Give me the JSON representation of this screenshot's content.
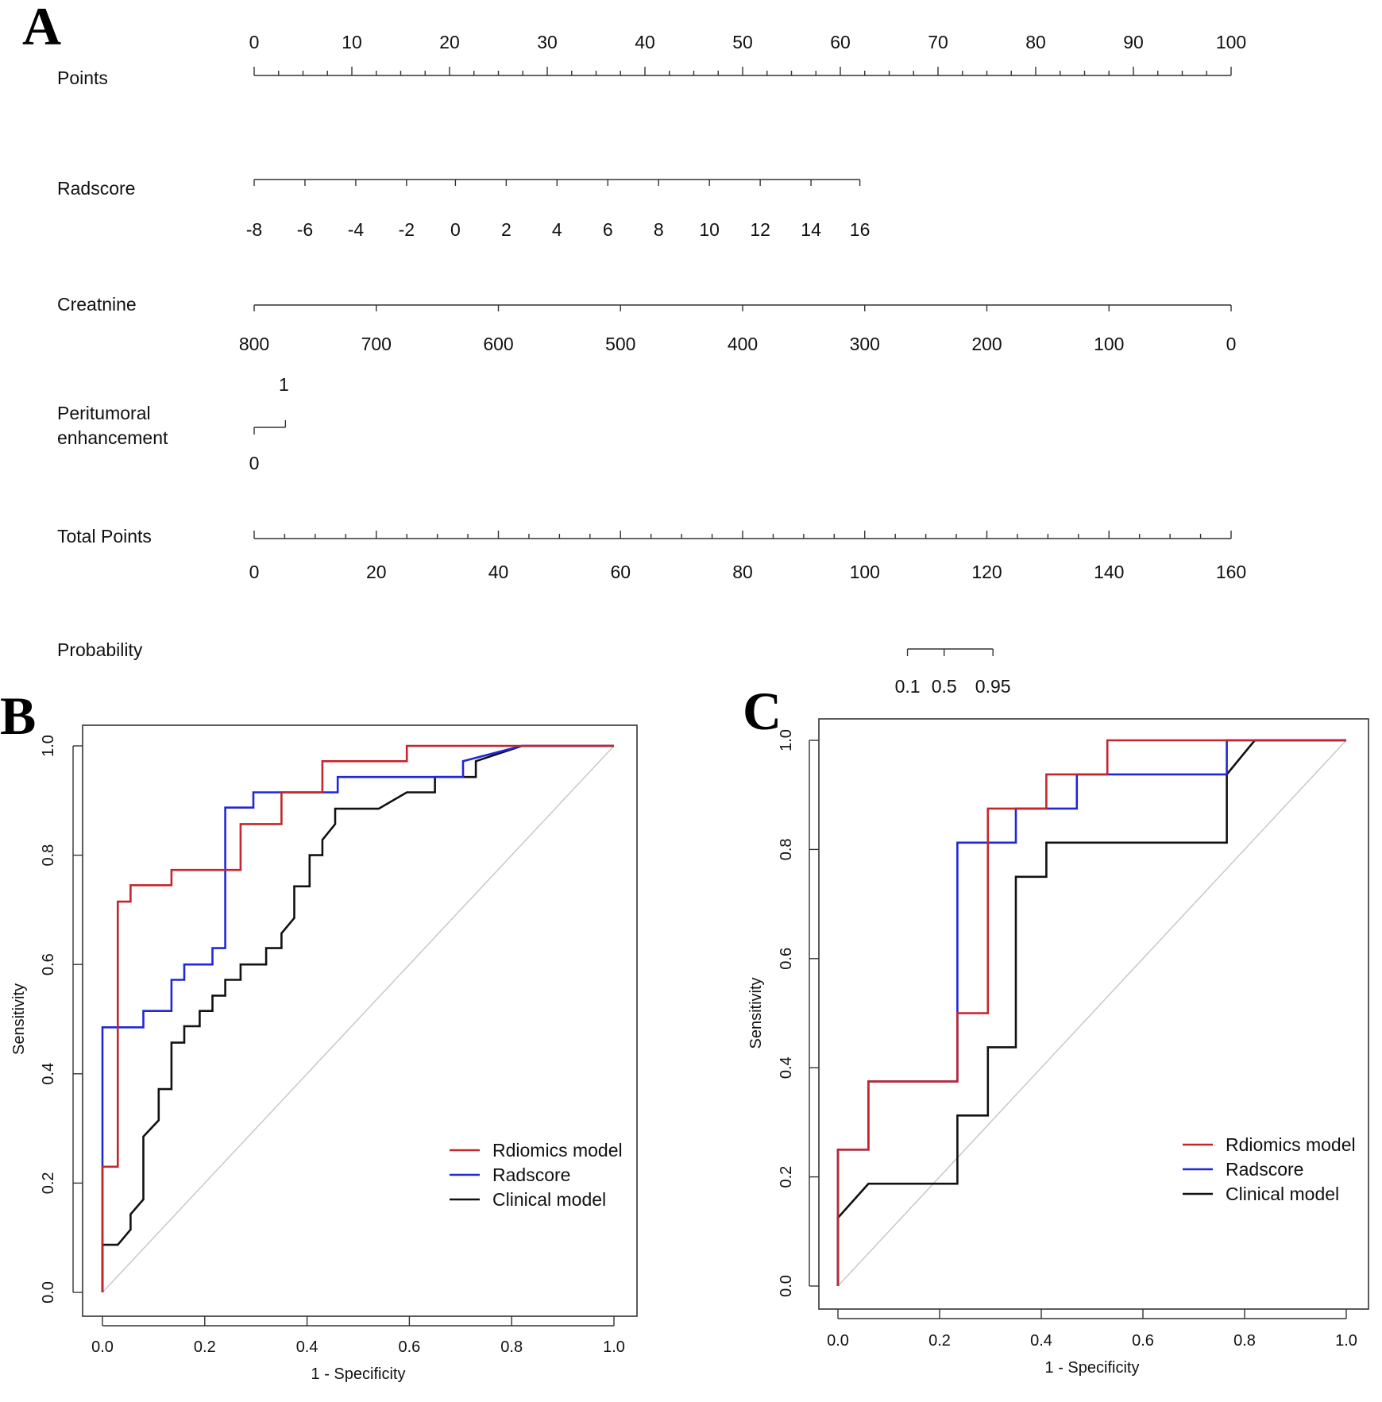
{
  "panels": {
    "a": "A",
    "b": "B",
    "c": "C"
  },
  "colors": {
    "radiomics": "#c1272d",
    "radscore": "#1f27d8",
    "clinical": "#111111",
    "diagonal": "#c8c8c8",
    "axis": "#333333"
  },
  "chart_data": [
    {
      "type": "nomogram",
      "panel": "A",
      "scales": [
        {
          "label": "Points",
          "ticks": [
            "0",
            "10",
            "20",
            "30",
            "40",
            "50",
            "60",
            "70",
            "80",
            "90",
            "100"
          ],
          "values": [
            0,
            10,
            20,
            30,
            40,
            50,
            60,
            70,
            80,
            90,
            100
          ],
          "points": [
            0,
            10,
            20,
            30,
            40,
            50,
            60,
            70,
            80,
            90,
            100
          ],
          "minor_step_points": 2.5
        },
        {
          "label": "Radscore",
          "ticks": [
            "-8",
            "-6",
            "-4",
            "-2",
            "0",
            "2",
            "4",
            "6",
            "8",
            "10",
            "12",
            "14",
            "16"
          ],
          "values": [
            -8,
            -6,
            -4,
            -2,
            0,
            2,
            4,
            6,
            8,
            10,
            12,
            14,
            16
          ],
          "points": [
            0,
            5.2,
            10.4,
            15.6,
            20.6,
            25.8,
            31,
            36.2,
            41.4,
            46.6,
            51.8,
            57,
            62
          ]
        },
        {
          "label": "Creatnine",
          "ticks": [
            "800",
            "700",
            "600",
            "500",
            "400",
            "300",
            "200",
            "100",
            "0"
          ],
          "values": [
            800,
            700,
            600,
            500,
            400,
            300,
            200,
            100,
            0
          ],
          "points": [
            0,
            12.5,
            25,
            37.5,
            50,
            62.5,
            75,
            87.5,
            100
          ]
        },
        {
          "label_lines": [
            "Peritumoral",
            "enhancement"
          ],
          "ticks": [
            "0",
            "1"
          ],
          "values": [
            0,
            1
          ],
          "points": [
            0,
            3.2
          ]
        },
        {
          "label": "Total Points",
          "ticks": [
            "0",
            "20",
            "40",
            "60",
            "80",
            "100",
            "120",
            "140",
            "160"
          ],
          "values": [
            0,
            20,
            40,
            60,
            80,
            100,
            120,
            140,
            160
          ],
          "total_points": [
            0,
            20,
            40,
            60,
            80,
            100,
            120,
            140,
            160
          ],
          "minor_step_points": 5
        },
        {
          "label": "Probability",
          "ticks": [
            "0.1",
            "0.5",
            "0.95"
          ],
          "values": [
            0.1,
            0.5,
            0.95
          ],
          "total_points": [
            107,
            113,
            121
          ]
        }
      ]
    },
    {
      "type": "line",
      "panel": "B",
      "xlabel": "1 - Specificity",
      "ylabel": "Sensitivity",
      "xlim": [
        0,
        1
      ],
      "ylim": [
        0,
        1
      ],
      "xticks": [
        "0.0",
        "0.2",
        "0.4",
        "0.6",
        "0.8",
        "1.0"
      ],
      "yticks": [
        "0.0",
        "0.2",
        "0.4",
        "0.6",
        "0.8",
        "1.0"
      ],
      "diagonal": true,
      "legend_position": "bottom-right",
      "series": [
        {
          "name": "Rdiomics model",
          "key": "radiomics",
          "x": [
            0,
            0,
            0.03,
            0.03,
            0.055,
            0.055,
            0.135,
            0.135,
            0.27,
            0.27,
            0.35,
            0.35,
            0.43,
            0.43,
            0.595,
            0.595,
            0.82,
            1
          ],
          "y": [
            0,
            0.23,
            0.23,
            0.715,
            0.715,
            0.745,
            0.745,
            0.773,
            0.773,
            0.857,
            0.857,
            0.915,
            0.915,
            0.972,
            0.972,
            1,
            1,
            1
          ]
        },
        {
          "name": "Radscore",
          "key": "radscore",
          "x": [
            0,
            0,
            0.08,
            0.08,
            0.135,
            0.135,
            0.16,
            0.16,
            0.215,
            0.215,
            0.24,
            0.24,
            0.295,
            0.295,
            0.46,
            0.46,
            0.705,
            0.705,
            0.82,
            1
          ],
          "y": [
            0,
            0.485,
            0.485,
            0.515,
            0.515,
            0.572,
            0.572,
            0.6,
            0.6,
            0.63,
            0.63,
            0.887,
            0.887,
            0.915,
            0.915,
            0.943,
            0.943,
            0.972,
            1,
            1
          ]
        },
        {
          "name": "Clinical model",
          "key": "clinical",
          "x": [
            0,
            0,
            0.03,
            0.055,
            0.055,
            0.08,
            0.08,
            0.11,
            0.11,
            0.135,
            0.135,
            0.16,
            0.16,
            0.19,
            0.19,
            0.215,
            0.215,
            0.24,
            0.24,
            0.27,
            0.27,
            0.32,
            0.32,
            0.35,
            0.35,
            0.375,
            0.375,
            0.405,
            0.405,
            0.43,
            0.43,
            0.455,
            0.455,
            0.475,
            0.54,
            0.595,
            0.595,
            0.65,
            0.65,
            0.73,
            0.73,
            0.82,
            1
          ],
          "y": [
            0,
            0.087,
            0.087,
            0.115,
            0.143,
            0.17,
            0.285,
            0.315,
            0.372,
            0.372,
            0.457,
            0.457,
            0.487,
            0.487,
            0.515,
            0.515,
            0.543,
            0.543,
            0.572,
            0.572,
            0.6,
            0.6,
            0.63,
            0.63,
            0.657,
            0.685,
            0.743,
            0.743,
            0.8,
            0.8,
            0.828,
            0.857,
            0.885,
            0.885,
            0.885,
            0.915,
            0.915,
            0.915,
            0.943,
            0.943,
            0.972,
            1,
            1
          ]
        }
      ]
    },
    {
      "type": "line",
      "panel": "C",
      "xlabel": "1 - Specificity",
      "ylabel": "Sensitivity",
      "xlim": [
        0,
        1
      ],
      "ylim": [
        0,
        1
      ],
      "xticks": [
        "0.0",
        "0.2",
        "0.4",
        "0.6",
        "0.8",
        "1.0"
      ],
      "yticks": [
        "0.0",
        "0.2",
        "0.4",
        "0.6",
        "0.8",
        "1.0"
      ],
      "diagonal": true,
      "legend_position": "bottom-right",
      "series": [
        {
          "name": "Rdiomics model",
          "key": "radiomics",
          "x": [
            0,
            0,
            0.06,
            0.06,
            0.235,
            0.235,
            0.295,
            0.295,
            0.41,
            0.41,
            0.53,
            0.53,
            0.82,
            1
          ],
          "y": [
            0,
            0.25,
            0.25,
            0.375,
            0.375,
            0.5,
            0.5,
            0.875,
            0.875,
            0.9375,
            0.9375,
            1,
            1,
            1
          ]
        },
        {
          "name": "Radscore",
          "key": "radscore",
          "x": [
            0,
            0,
            0.06,
            0.06,
            0.235,
            0.235,
            0.35,
            0.35,
            0.47,
            0.47,
            0.765,
            0.765,
            1
          ],
          "y": [
            0,
            0.25,
            0.25,
            0.375,
            0.375,
            0.8125,
            0.8125,
            0.875,
            0.875,
            0.9375,
            0.9375,
            1,
            1
          ]
        },
        {
          "name": "Clinical model",
          "key": "clinical",
          "x": [
            0,
            0,
            0.06,
            0.235,
            0.235,
            0.295,
            0.295,
            0.35,
            0.35,
            0.41,
            0.41,
            0.765,
            0.765,
            0.82,
            1
          ],
          "y": [
            0,
            0.125,
            0.1875,
            0.1875,
            0.3125,
            0.3125,
            0.4375,
            0.4375,
            0.75,
            0.75,
            0.8125,
            0.8125,
            0.9375,
            1,
            1
          ]
        }
      ]
    }
  ]
}
